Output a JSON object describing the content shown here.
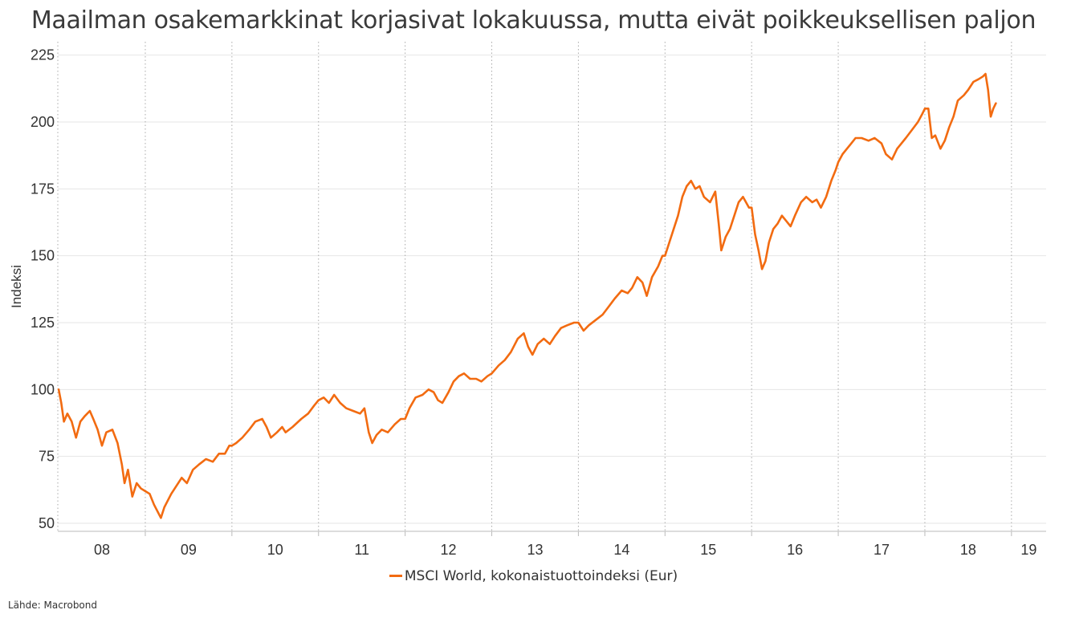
{
  "title": "Maailman osakemarkkinat korjasivat lokakuussa, mutta eivät poikkeuksellisen paljon",
  "source": "Lähde: Macrobond",
  "colors": {
    "series": "#f26b11",
    "grid": "#e6e6e6",
    "axis": "#bbbbbb",
    "year_divider": "#aaaaaa"
  },
  "chart_data": {
    "type": "line",
    "title": "Maailman osakemarkkinat korjasivat lokakuussa, mutta eivät poikkeuksellisen paljon",
    "xlabel": "",
    "ylabel": "Indeksi",
    "x_range": [
      2007.99,
      2019.4
    ],
    "ylim": [
      47,
      230
    ],
    "yticks": [
      50,
      75,
      100,
      125,
      150,
      175,
      200,
      225
    ],
    "x_tick_labels": [
      {
        "x": 2008.5,
        "label": "08"
      },
      {
        "x": 2009.5,
        "label": "09"
      },
      {
        "x": 2010.5,
        "label": "10"
      },
      {
        "x": 2011.5,
        "label": "11"
      },
      {
        "x": 2012.5,
        "label": "12"
      },
      {
        "x": 2013.5,
        "label": "13"
      },
      {
        "x": 2014.5,
        "label": "14"
      },
      {
        "x": 2015.5,
        "label": "15"
      },
      {
        "x": 2016.5,
        "label": "16"
      },
      {
        "x": 2017.5,
        "label": "17"
      },
      {
        "x": 2018.5,
        "label": "18"
      },
      {
        "x": 2019.2,
        "label": "19"
      }
    ],
    "year_dividers": [
      2009,
      2010,
      2011,
      2012,
      2013,
      2014,
      2015,
      2016,
      2017,
      2018,
      2019
    ],
    "grid": "horizontal",
    "legend_position": "bottom-center",
    "series": [
      {
        "name": "MSCI World, kokonaistuottoindeksi (Eur)",
        "color": "#f26b11",
        "points": [
          [
            2008.0,
            100
          ],
          [
            2008.03,
            95
          ],
          [
            2008.06,
            88
          ],
          [
            2008.1,
            91
          ],
          [
            2008.15,
            88
          ],
          [
            2008.2,
            82
          ],
          [
            2008.25,
            88
          ],
          [
            2008.3,
            90
          ],
          [
            2008.36,
            92
          ],
          [
            2008.4,
            89
          ],
          [
            2008.45,
            85
          ],
          [
            2008.5,
            79
          ],
          [
            2008.55,
            84
          ],
          [
            2008.62,
            85
          ],
          [
            2008.68,
            80
          ],
          [
            2008.73,
            72
          ],
          [
            2008.76,
            65
          ],
          [
            2008.8,
            70
          ],
          [
            2008.85,
            60
          ],
          [
            2008.9,
            65
          ],
          [
            2008.95,
            63
          ],
          [
            2009.0,
            62
          ],
          [
            2009.05,
            61
          ],
          [
            2009.1,
            57
          ],
          [
            2009.18,
            52
          ],
          [
            2009.22,
            56
          ],
          [
            2009.3,
            61
          ],
          [
            2009.36,
            64
          ],
          [
            2009.42,
            67
          ],
          [
            2009.48,
            65
          ],
          [
            2009.55,
            70
          ],
          [
            2009.62,
            72
          ],
          [
            2009.7,
            74
          ],
          [
            2009.78,
            73
          ],
          [
            2009.85,
            76
          ],
          [
            2009.92,
            76
          ],
          [
            2009.97,
            79
          ],
          [
            2010.0,
            79
          ],
          [
            2010.05,
            80
          ],
          [
            2010.12,
            82
          ],
          [
            2010.2,
            85
          ],
          [
            2010.27,
            88
          ],
          [
            2010.35,
            89
          ],
          [
            2010.4,
            86
          ],
          [
            2010.45,
            82
          ],
          [
            2010.52,
            84
          ],
          [
            2010.58,
            86
          ],
          [
            2010.62,
            84
          ],
          [
            2010.7,
            86
          ],
          [
            2010.8,
            89
          ],
          [
            2010.88,
            91
          ],
          [
            2010.95,
            94
          ],
          [
            2011.0,
            96
          ],
          [
            2011.06,
            97
          ],
          [
            2011.12,
            95
          ],
          [
            2011.18,
            98
          ],
          [
            2011.25,
            95
          ],
          [
            2011.32,
            93
          ],
          [
            2011.4,
            92
          ],
          [
            2011.48,
            91
          ],
          [
            2011.53,
            93
          ],
          [
            2011.58,
            84
          ],
          [
            2011.62,
            80
          ],
          [
            2011.67,
            83
          ],
          [
            2011.73,
            85
          ],
          [
            2011.8,
            84
          ],
          [
            2011.88,
            87
          ],
          [
            2011.95,
            89
          ],
          [
            2012.0,
            89
          ],
          [
            2012.05,
            93
          ],
          [
            2012.12,
            97
          ],
          [
            2012.2,
            98
          ],
          [
            2012.27,
            100
          ],
          [
            2012.33,
            99
          ],
          [
            2012.38,
            96
          ],
          [
            2012.43,
            95
          ],
          [
            2012.5,
            99
          ],
          [
            2012.56,
            103
          ],
          [
            2012.62,
            105
          ],
          [
            2012.68,
            106
          ],
          [
            2012.75,
            104
          ],
          [
            2012.82,
            104
          ],
          [
            2012.88,
            103
          ],
          [
            2012.95,
            105
          ],
          [
            2013.0,
            106
          ],
          [
            2013.08,
            109
          ],
          [
            2013.15,
            111
          ],
          [
            2013.22,
            114
          ],
          [
            2013.3,
            119
          ],
          [
            2013.37,
            121
          ],
          [
            2013.42,
            116
          ],
          [
            2013.47,
            113
          ],
          [
            2013.53,
            117
          ],
          [
            2013.6,
            119
          ],
          [
            2013.67,
            117
          ],
          [
            2013.73,
            120
          ],
          [
            2013.8,
            123
          ],
          [
            2013.87,
            124
          ],
          [
            2013.95,
            125
          ],
          [
            2014.0,
            125
          ],
          [
            2014.06,
            122
          ],
          [
            2014.12,
            124
          ],
          [
            2014.2,
            126
          ],
          [
            2014.28,
            128
          ],
          [
            2014.35,
            131
          ],
          [
            2014.42,
            134
          ],
          [
            2014.5,
            137
          ],
          [
            2014.57,
            136
          ],
          [
            2014.62,
            138
          ],
          [
            2014.68,
            142
          ],
          [
            2014.74,
            140
          ],
          [
            2014.79,
            135
          ],
          [
            2014.85,
            142
          ],
          [
            2014.92,
            146
          ],
          [
            2014.97,
            150
          ],
          [
            2015.0,
            150
          ],
          [
            2015.05,
            155
          ],
          [
            2015.1,
            160
          ],
          [
            2015.15,
            165
          ],
          [
            2015.2,
            172
          ],
          [
            2015.25,
            176
          ],
          [
            2015.3,
            178
          ],
          [
            2015.35,
            175
          ],
          [
            2015.4,
            176
          ],
          [
            2015.45,
            172
          ],
          [
            2015.52,
            170
          ],
          [
            2015.58,
            174
          ],
          [
            2015.62,
            162
          ],
          [
            2015.65,
            152
          ],
          [
            2015.7,
            157
          ],
          [
            2015.75,
            160
          ],
          [
            2015.8,
            165
          ],
          [
            2015.85,
            170
          ],
          [
            2015.9,
            172
          ],
          [
            2015.97,
            168
          ],
          [
            2016.0,
            168
          ],
          [
            2016.04,
            158
          ],
          [
            2016.08,
            152
          ],
          [
            2016.12,
            145
          ],
          [
            2016.16,
            148
          ],
          [
            2016.2,
            155
          ],
          [
            2016.25,
            160
          ],
          [
            2016.3,
            162
          ],
          [
            2016.35,
            165
          ],
          [
            2016.4,
            163
          ],
          [
            2016.45,
            161
          ],
          [
            2016.5,
            165
          ],
          [
            2016.57,
            170
          ],
          [
            2016.63,
            172
          ],
          [
            2016.7,
            170
          ],
          [
            2016.75,
            171
          ],
          [
            2016.8,
            168
          ],
          [
            2016.86,
            172
          ],
          [
            2016.92,
            178
          ],
          [
            2016.97,
            182
          ],
          [
            2017.0,
            185
          ],
          [
            2017.05,
            188
          ],
          [
            2017.1,
            190
          ],
          [
            2017.15,
            192
          ],
          [
            2017.2,
            194
          ],
          [
            2017.27,
            194
          ],
          [
            2017.35,
            193
          ],
          [
            2017.42,
            194
          ],
          [
            2017.5,
            192
          ],
          [
            2017.55,
            188
          ],
          [
            2017.62,
            186
          ],
          [
            2017.68,
            190
          ],
          [
            2017.73,
            192
          ],
          [
            2017.78,
            194
          ],
          [
            2017.85,
            197
          ],
          [
            2017.92,
            200
          ],
          [
            2017.97,
            203
          ],
          [
            2018.0,
            205
          ],
          [
            2018.04,
            205
          ],
          [
            2018.08,
            194
          ],
          [
            2018.12,
            195
          ],
          [
            2018.18,
            190
          ],
          [
            2018.23,
            193
          ],
          [
            2018.28,
            198
          ],
          [
            2018.33,
            202
          ],
          [
            2018.38,
            208
          ],
          [
            2018.45,
            210
          ],
          [
            2018.5,
            212
          ],
          [
            2018.56,
            215
          ],
          [
            2018.62,
            216
          ],
          [
            2018.67,
            217
          ],
          [
            2018.7,
            218
          ],
          [
            2018.73,
            212
          ],
          [
            2018.76,
            202
          ],
          [
            2018.79,
            205
          ],
          [
            2018.82,
            207
          ]
        ]
      }
    ]
  }
}
